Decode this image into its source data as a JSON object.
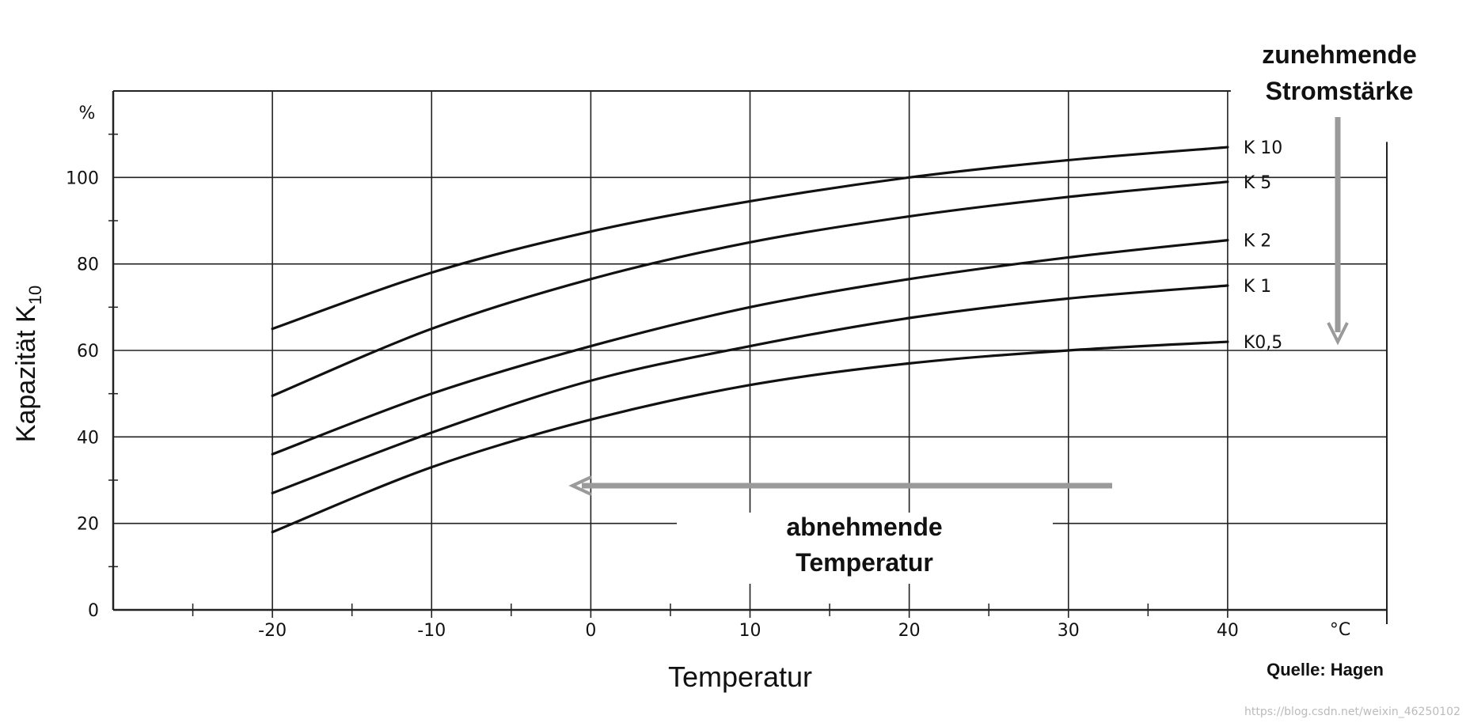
{
  "chart_data": {
    "type": "line",
    "title": "",
    "xlabel": "Temperatur",
    "ylabel": "Kapazität K",
    "ylabel_subscript": "10",
    "y_unit": "%",
    "x_unit": "°C",
    "xlim": [
      -30,
      50
    ],
    "ylim": [
      0,
      120
    ],
    "x_ticks": [
      -20,
      -10,
      0,
      10,
      20,
      30,
      40
    ],
    "x_tick_labels": [
      "-20",
      "-10",
      "0",
      "10",
      "20",
      "30",
      "40"
    ],
    "y_ticks": [
      0,
      20,
      40,
      60,
      80,
      100
    ],
    "y_tick_labels": [
      "0",
      "20",
      "40",
      "60",
      "80",
      "100"
    ],
    "grid": true,
    "x": [
      -20,
      -10,
      0,
      10,
      20,
      30,
      40
    ],
    "series": [
      {
        "name": "K 10",
        "values": [
          65,
          78,
          87.5,
          94.5,
          100,
          104,
          107
        ]
      },
      {
        "name": "K 5",
        "values": [
          49.5,
          65,
          76.5,
          85,
          91,
          95.5,
          99
        ]
      },
      {
        "name": "K 2",
        "values": [
          36,
          50,
          61,
          70,
          76.5,
          81.5,
          85.5
        ]
      },
      {
        "name": "K 1",
        "values": [
          27,
          41,
          53,
          61,
          67.5,
          72,
          75
        ]
      },
      {
        "name": "K0,5",
        "values": [
          18,
          33,
          44,
          52,
          57,
          60,
          62
        ]
      }
    ],
    "annotations": {
      "increasing_current": "zunehmende Stromstärke",
      "increasing_current_line1": "zunehmende",
      "increasing_current_line2": "Stromstärke",
      "decreasing_temp_line1": "abnehmende",
      "decreasing_temp_line2": "Temperatur",
      "source": "Quelle: Hagen",
      "watermark": "https://blog.csdn.net/weixin_46250102"
    }
  },
  "colors": {
    "line": "#111111",
    "grid": "#222222",
    "arrow": "#9a9a9a"
  }
}
